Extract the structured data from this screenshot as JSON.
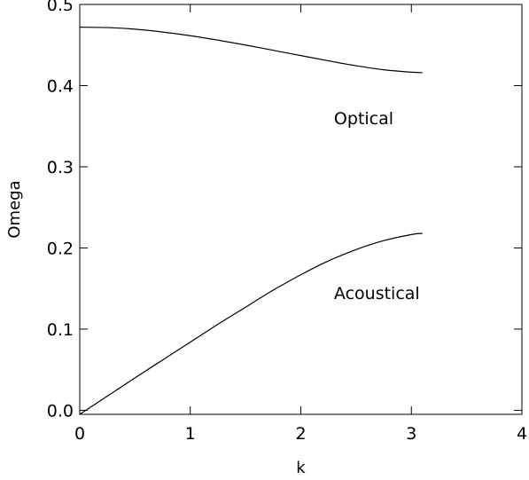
{
  "chart_data": {
    "type": "line",
    "title": "",
    "xlabel": "k",
    "ylabel": "Omega",
    "xlim": [
      0,
      4
    ],
    "ylim": [
      -0.005,
      0.5
    ],
    "xticks": [
      0,
      1,
      2,
      3,
      4
    ],
    "xtick_labels": [
      "0",
      "1",
      "2",
      "3",
      "4"
    ],
    "yticks": [
      0.0,
      0.1,
      0.2,
      0.3,
      0.4,
      0.5
    ],
    "ytick_labels": [
      "0.0",
      "0.1",
      "0.2",
      "0.3",
      "0.4",
      "0.5"
    ],
    "grid": false,
    "colors": {
      "line": "#000000",
      "axes": "#000000",
      "background": "#ffffff"
    },
    "series": [
      {
        "annotation": "Optical",
        "x": [
          0,
          0.25,
          0.5,
          0.75,
          1.0,
          1.25,
          1.5,
          1.75,
          2.0,
          2.25,
          2.5,
          2.75,
          3.0,
          3.1
        ],
        "y": [
          0.472,
          0.4715,
          0.4695,
          0.466,
          0.4615,
          0.456,
          0.45,
          0.4435,
          0.437,
          0.4305,
          0.4245,
          0.4195,
          0.4165,
          0.416
        ]
      },
      {
        "annotation": "Acoustical",
        "x": [
          0,
          0.25,
          0.5,
          0.75,
          1.0,
          1.25,
          1.5,
          1.75,
          2.0,
          2.25,
          2.5,
          2.75,
          3.0,
          3.1
        ],
        "y": [
          -0.005,
          0.0175,
          0.04,
          0.062,
          0.084,
          0.106,
          0.127,
          0.148,
          0.167,
          0.184,
          0.198,
          0.209,
          0.2165,
          0.218
        ]
      }
    ],
    "annotations": [
      {
        "text": "Optical",
        "x": 2.3,
        "y": 0.36
      },
      {
        "text": "Acoustical",
        "x": 2.3,
        "y": 0.145
      }
    ]
  }
}
